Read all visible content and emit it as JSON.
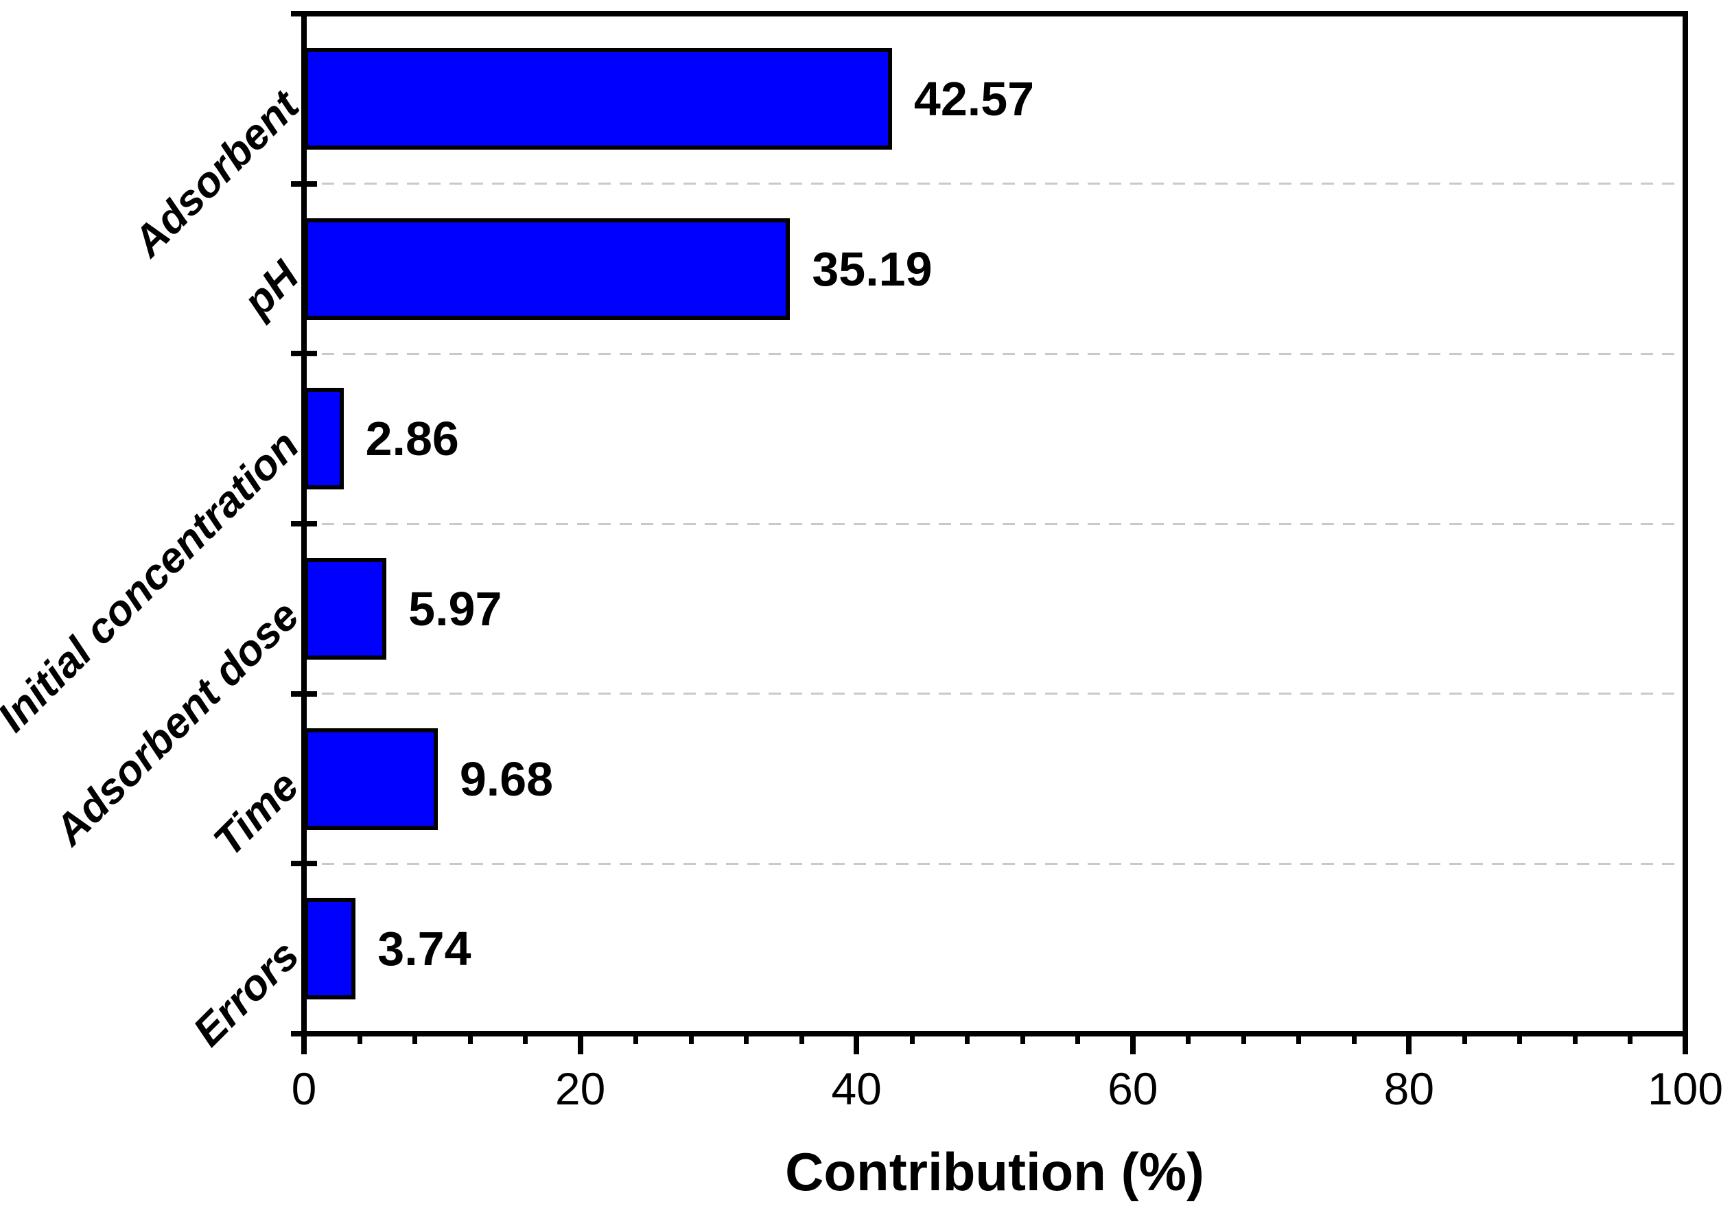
{
  "chart_data": {
    "type": "bar",
    "orientation": "horizontal",
    "title": "",
    "xlabel": "Contribution (%)",
    "ylabel": "",
    "categories": [
      "Adsorbent",
      "pH",
      "Initial concentration",
      "Adsorbent dose",
      "Time",
      "Errors"
    ],
    "values": [
      42.57,
      35.19,
      2.86,
      5.97,
      9.68,
      3.74
    ],
    "bar_labels": [
      "42.57",
      "35.19",
      "2.86",
      "5.97",
      "9.68",
      "3.74"
    ],
    "xlim": [
      0,
      100
    ],
    "x_major_ticks": [
      0,
      20,
      40,
      60,
      80,
      100
    ],
    "x_tick_labels": [
      "0",
      "20",
      "40",
      "60",
      "80",
      "100"
    ],
    "x_minor_tick_step": 4,
    "grid": {
      "horizontal_dashed_lines_between_categories": true
    },
    "legend": "none",
    "colors": {
      "bar_fill": "#0000FE",
      "bar_border": "#000000",
      "axis": "#000000",
      "gridline": "#c9c9c9",
      "text": "#000000"
    }
  }
}
